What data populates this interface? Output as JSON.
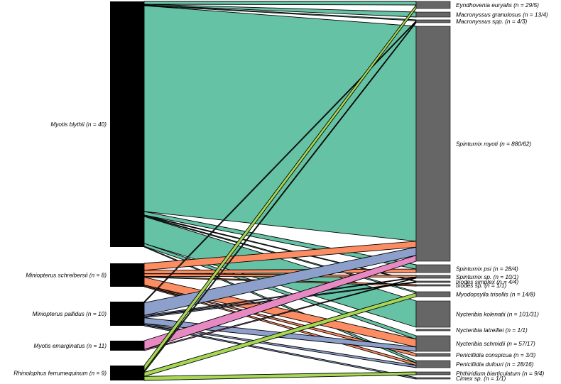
{
  "colors": {
    "Myotis blythii": "#66c2a5",
    "Miniopterus schreibersii": "#fc8d62",
    "Miniopterus pallidus": "#8da0cb",
    "Myotis emarginatus": "#e78ac3",
    "Rhinolophus ferrumequinum": "#a6d854",
    "host_bar": "#000000",
    "parasite_bar": "#666666"
  },
  "hosts": [
    {
      "name": "Myotis blythii",
      "label": "Myotis blythii (n = 40)"
    },
    {
      "name": "Miniopterus schreibersii",
      "label": "Miniopterus schreibersii (n = 8)"
    },
    {
      "name": "Miniopterus pallidus",
      "label": "Miniopterus pallidus (n = 10)"
    },
    {
      "name": "Myotis emarginatus",
      "label": "Myotis emarginatus (n = 11)"
    },
    {
      "name": "Rhinolophus ferrumequinum",
      "label": "Rhinolophus ferrumequinum (n = 9)"
    }
  ],
  "parasites": [
    {
      "name": "Eyndhovenia euryalis",
      "label": "Eyndhovenia euryalis (n = 29/5)"
    },
    {
      "name": "Macronyssus granulosus",
      "label": "Macronyssus granulosus (n = 13/4)"
    },
    {
      "name": "Macronyssus spp.",
      "label": "Macronyssus spp. (n = 4/3)"
    },
    {
      "name": "Spinturnix myoti",
      "label": "Spinturnix myoti (n = 880/62)"
    },
    {
      "name": "Spinturnix psi",
      "label": "Spinturnix psi (n = 28/4)"
    },
    {
      "name": "Spinturnix sp.",
      "label": "Spinturnix sp. (n = 10/1)"
    },
    {
      "name": "Ixodes simplex",
      "label": "Ixodes simplex (n = 4/4)"
    },
    {
      "name": "Ixodes sp.",
      "label": "Ixodes sp. (n = 1/1)"
    },
    {
      "name": "Myodopsylla trisellis",
      "label": "Myodopsylla trisellis (n = 14/8)"
    },
    {
      "name": "Nycteribia kolenatii",
      "label": "Nycteribia kolenatii (n = 101/31)"
    },
    {
      "name": "Nycteribia latreillei",
      "label": "Nycteribia latreillei (n = 1/1)"
    },
    {
      "name": "Nycteribia schmidii",
      "label": "Nycteribia schmidii (n = 57/17)"
    },
    {
      "name": "Penicillidia conspicua",
      "label": "Penicillidia conspicua (n = 3/3)"
    },
    {
      "name": "Penicillidia dufouri",
      "label": "Penicillidia dufouri (n = 28/16)"
    },
    {
      "name": "Phthiridium biarticulatum",
      "label": "Phthiridium biarticulatum (n = 9/4)"
    },
    {
      "name": "Cimex sp.",
      "label": "Cimex sp. (n = 1/1)"
    }
  ],
  "links": [
    {
      "host": "Myotis blythii",
      "parasite": "Eyndhovenia euryalis",
      "value": 4
    },
    {
      "host": "Myotis blythii",
      "parasite": "Macronyssus granulosus",
      "value": 1
    },
    {
      "host": "Myotis blythii",
      "parasite": "Macronyssus spp.",
      "value": 1
    },
    {
      "host": "Myotis blythii",
      "parasite": "Spinturnix myoti",
      "value": 290
    },
    {
      "host": "Myotis blythii",
      "parasite": "Spinturnix psi",
      "value": 5
    },
    {
      "host": "Myotis blythii",
      "parasite": "Ixodes simplex",
      "value": 1
    },
    {
      "host": "Myotis blythii",
      "parasite": "Myodopsylla trisellis",
      "value": 1
    },
    {
      "host": "Myotis blythii",
      "parasite": "Nycteribia kolenatii",
      "value": 38
    },
    {
      "host": "Myotis blythii",
      "parasite": "Nycteribia schmidii",
      "value": 4
    },
    {
      "host": "Myotis blythii",
      "parasite": "Penicillidia dufouri",
      "value": 1
    },
    {
      "host": "Miniopterus schreibersii",
      "parasite": "Spinturnix myoti",
      "value": 8
    },
    {
      "host": "Miniopterus schreibersii",
      "parasite": "Spinturnix psi",
      "value": 4
    },
    {
      "host": "Miniopterus schreibersii",
      "parasite": "Spinturnix sp.",
      "value": 3
    },
    {
      "host": "Miniopterus schreibersii",
      "parasite": "Ixodes sp.",
      "value": 1
    },
    {
      "host": "Miniopterus schreibersii",
      "parasite": "Nycteribia schmidii",
      "value": 9
    },
    {
      "host": "Miniopterus schreibersii",
      "parasite": "Penicillidia conspicua",
      "value": 1
    },
    {
      "host": "Miniopterus schreibersii",
      "parasite": "Penicillidia dufouri",
      "value": 1
    },
    {
      "host": "Miniopterus pallidus",
      "parasite": "Macronyssus spp.",
      "value": 1
    },
    {
      "host": "Miniopterus pallidus",
      "parasite": "Spinturnix myoti",
      "value": 11
    },
    {
      "host": "Miniopterus pallidus",
      "parasite": "Spinturnix sp.",
      "value": 1
    },
    {
      "host": "Miniopterus pallidus",
      "parasite": "Ixodes simplex",
      "value": 1
    },
    {
      "host": "Miniopterus pallidus",
      "parasite": "Nycteribia schmidii",
      "value": 5
    },
    {
      "host": "Miniopterus pallidus",
      "parasite": "Penicillidia dufouri",
      "value": 1
    },
    {
      "host": "Miniopterus pallidus",
      "parasite": "Cimex sp.",
      "value": 1
    },
    {
      "host": "Myotis emarginatus",
      "parasite": "Spinturnix myoti",
      "value": 8
    },
    {
      "host": "Myotis emarginatus",
      "parasite": "Spinturnix sp.",
      "value": 1
    },
    {
      "host": "Rhinolophus ferrumequinum",
      "parasite": "Eyndhovenia euryalis",
      "value": 4
    },
    {
      "host": "Rhinolophus ferrumequinum",
      "parasite": "Macronyssus spp.",
      "value": 1
    },
    {
      "host": "Rhinolophus ferrumequinum",
      "parasite": "Myodopsylla trisellis",
      "value": 3
    },
    {
      "host": "Rhinolophus ferrumequinum",
      "parasite": "Phthiridium biarticulatum",
      "value": 3
    }
  ]
}
